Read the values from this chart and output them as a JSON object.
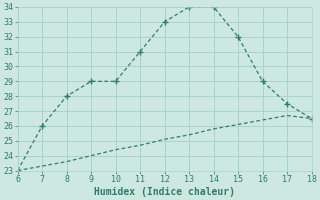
{
  "xlabel": "Humidex (Indice chaleur)",
  "x_upper": [
    6,
    7,
    8,
    9,
    10,
    11,
    12,
    13,
    14,
    15,
    16,
    17,
    18
  ],
  "y_upper": [
    23,
    26,
    28,
    29,
    29,
    31,
    33,
    34,
    34,
    32,
    29,
    27.5,
    26.5
  ],
  "x_lower": [
    6,
    7,
    8,
    9,
    10,
    11,
    12,
    13,
    14,
    15,
    16,
    17,
    18
  ],
  "y_lower": [
    23,
    23.3,
    23.6,
    24.0,
    24.4,
    24.7,
    25.1,
    25.4,
    25.8,
    26.1,
    26.4,
    26.7,
    26.5
  ],
  "line_color": "#2e7d6e",
  "bg_color": "#cce8e0",
  "grid_color": "#a8d5c8",
  "xlim": [
    6,
    18
  ],
  "ylim": [
    23,
    34
  ],
  "xticks": [
    6,
    7,
    8,
    9,
    10,
    11,
    12,
    13,
    14,
    15,
    16,
    17,
    18
  ],
  "yticks": [
    23,
    24,
    25,
    26,
    27,
    28,
    29,
    30,
    31,
    32,
    33,
    34
  ],
  "tick_fontsize": 6,
  "xlabel_fontsize": 7
}
